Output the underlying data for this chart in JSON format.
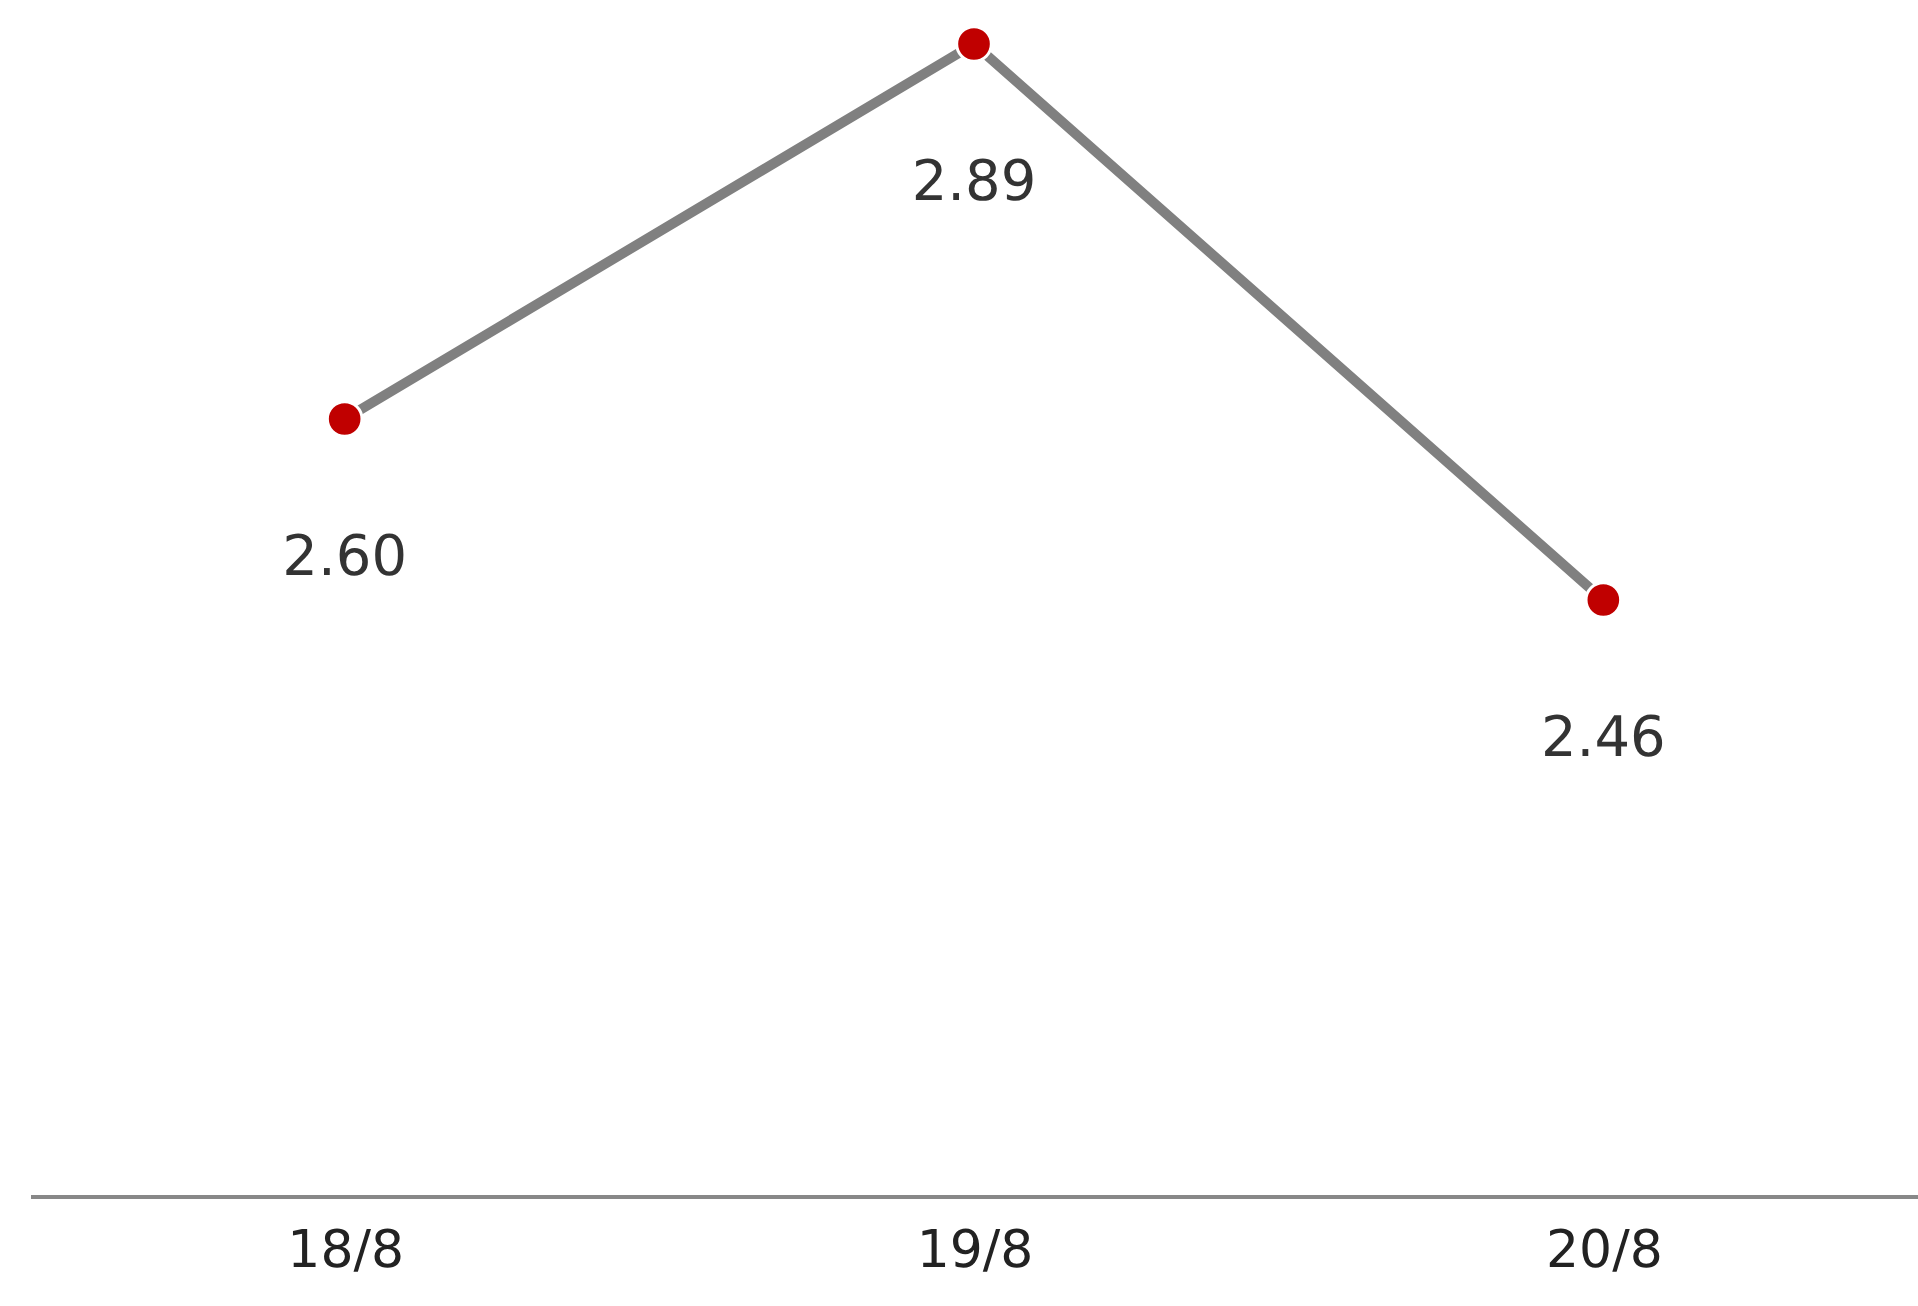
{
  "chart_data": {
    "type": "line",
    "categories": [
      "18/8",
      "19/8",
      "20/8"
    ],
    "series": [
      {
        "color": "#808080",
        "colors": [
          "#c00000",
          "#c00000",
          "#c00000"
        ],
        "values": [
          2.6,
          2.89,
          2.46
        ],
        "value_labels": [
          "2.60",
          "2.89",
          "2.46"
        ]
      }
    ],
    "marker": "circle",
    "line_style": "solid",
    "tick_labels": "x",
    "grid": false
  }
}
